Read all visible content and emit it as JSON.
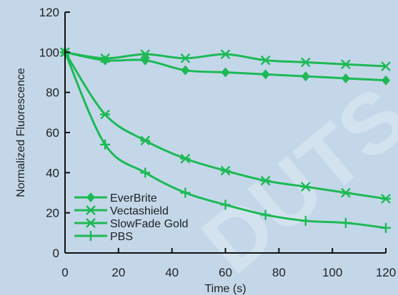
{
  "chart_data": {
    "type": "line",
    "title": "",
    "xlabel": "Time (s)",
    "ylabel": "Normalized Fluorescence",
    "xlim": [
      0,
      120
    ],
    "ylim": [
      0,
      120
    ],
    "xticks": [
      0,
      20,
      40,
      60,
      80,
      100,
      120
    ],
    "yticks": [
      0,
      20,
      40,
      60,
      80,
      100,
      120
    ],
    "grid": false,
    "legend_position": "bottom-left",
    "line_color": "#1db954",
    "x": [
      0,
      15,
      30,
      45,
      60,
      75,
      90,
      105,
      120
    ],
    "series": [
      {
        "name": "EverBrite",
        "marker": "diamond",
        "values": [
          100,
          96,
          96,
          91,
          90,
          89,
          88,
          87,
          86
        ]
      },
      {
        "name": "Vectashield",
        "marker": "x",
        "values": [
          100,
          97,
          99,
          97,
          99,
          96,
          95,
          94,
          93
        ]
      },
      {
        "name": "SlowFade Gold",
        "marker": "asterisk",
        "values": [
          100,
          69,
          56,
          47,
          41,
          36,
          33,
          30,
          27
        ]
      },
      {
        "name": "PBS",
        "marker": "plus",
        "values": [
          100,
          54,
          40,
          30,
          24,
          19,
          16,
          15,
          12.5
        ]
      }
    ]
  },
  "watermark": "DUTS"
}
